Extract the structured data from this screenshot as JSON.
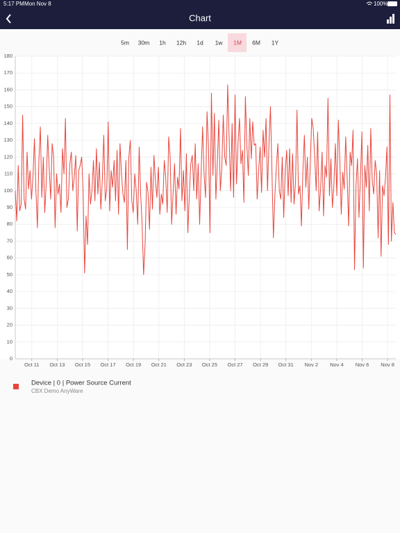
{
  "status_bar": {
    "time": "5:17 PM",
    "date": "Mon Nov 8",
    "battery": "100%"
  },
  "header": {
    "title": "Chart"
  },
  "ranges": {
    "options": [
      "5m",
      "30m",
      "1h",
      "12h",
      "1d",
      "1w",
      "1M",
      "6M",
      "1Y"
    ],
    "selected": 6
  },
  "chart_data": {
    "type": "line",
    "series": [
      {
        "name": "Device | 0 | Power Source Current",
        "source": "CBX Demo AnyWare",
        "color": "#e8453c",
        "values": [
          100,
          82,
          115,
          88,
          92,
          145,
          95,
          89,
          123,
          101,
          112,
          95,
          108,
          131,
          100,
          78,
          118,
          138,
          96,
          120,
          87,
          105,
          133,
          113,
          95,
          128,
          120,
          78,
          110,
          98,
          104,
          87,
          125,
          110,
          143,
          90,
          95,
          116,
          123,
          100,
          108,
          121,
          76,
          112,
          115,
          120,
          99,
          51,
          85,
          68,
          110,
          92,
          100,
          118,
          94,
          125,
          98,
          117,
          89,
          106,
          133,
          94,
          101,
          141,
          88,
          112,
          102,
          118,
          94,
          124,
          86,
          128,
          110,
          98,
          93,
          118,
          65,
          120,
          130,
          94,
          87,
          110,
          100,
          80,
          126,
          98,
          80,
          50,
          68,
          105,
          99,
          77,
          114,
          89,
          121,
          106,
          96,
          114,
          86,
          98,
          92,
          118,
          108,
          87,
          132,
          120,
          80,
          99,
          116,
          86,
          108,
          101,
          137,
          94,
          112,
          88,
          122,
          75,
          98,
          116,
          121,
          100,
          128,
          95,
          116,
          80,
          111,
          138,
          110,
          96,
          147,
          126,
          75,
          158,
          109,
          146,
          95,
          117,
          142,
          100,
          113,
          145,
          120,
          115,
          163,
          131,
          100,
          140,
          96,
          157,
          104,
          128,
          143,
          116,
          124,
          93,
          156,
          127,
          109,
          143,
          119,
          141,
          127,
          128,
          95,
          112,
          126,
          99,
          136,
          120,
          143,
          100,
          128,
          150,
          112,
          72,
          97,
          114,
          128,
          100,
          95,
          120,
          84,
          112,
          124,
          97,
          125,
          93,
          122,
          92,
          105,
          148,
          98,
          103,
          79,
          112,
          133,
          102,
          120,
          89,
          117,
          143,
          137,
          120,
          100,
          135,
          88,
          101,
          123,
          85,
          115,
          108,
          155,
          97,
          119,
          90,
          103,
          128,
          97,
          142,
          119,
          86,
          111,
          101,
          132,
          108,
          79,
          123,
          115,
          136,
          53,
          103,
          119,
          84,
          108,
          135,
          54,
          115,
          102,
          127,
          88,
          137,
          106,
          98,
          118,
          110,
          72,
          112,
          61,
          103,
          97,
          108,
          126,
          68,
          157,
          70,
          93,
          75,
          74
        ]
      }
    ],
    "ylim": [
      0,
      180
    ],
    "yticks": [
      0,
      10,
      20,
      30,
      40,
      50,
      60,
      70,
      80,
      90,
      100,
      110,
      120,
      130,
      140,
      150,
      160,
      170,
      180
    ],
    "xlim": [
      9.7,
      39.65
    ],
    "xticks": [
      {
        "value": 11,
        "label": "Oct 11"
      },
      {
        "value": 13,
        "label": "Oct 13"
      },
      {
        "value": 15,
        "label": "Oct 15"
      },
      {
        "value": 17,
        "label": "Oct 17"
      },
      {
        "value": 19,
        "label": "Oct 19"
      },
      {
        "value": 21,
        "label": "Oct 21"
      },
      {
        "value": 23,
        "label": "Oct 23"
      },
      {
        "value": 25,
        "label": "Oct 25"
      },
      {
        "value": 27,
        "label": "Oct 27"
      },
      {
        "value": 29,
        "label": "Oct 29"
      },
      {
        "value": 31,
        "label": "Oct 31"
      },
      {
        "value": 33,
        "label": "Nov 2"
      },
      {
        "value": 35,
        "label": "Nov 4"
      },
      {
        "value": 37,
        "label": "Nov 6"
      },
      {
        "value": 39,
        "label": "Nov 8"
      }
    ],
    "grid": true
  }
}
